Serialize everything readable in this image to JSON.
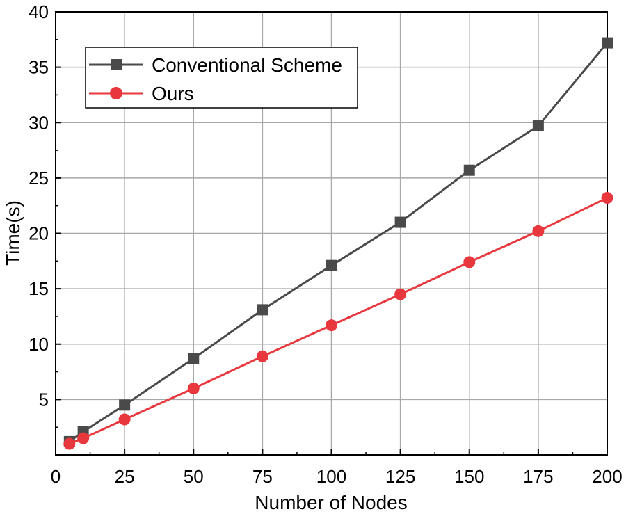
{
  "chart_data": {
    "type": "line",
    "title": "",
    "xlabel": "Number of Nodes",
    "ylabel": "Time(s)",
    "xlim": [
      0,
      200
    ],
    "ylim": [
      0,
      40
    ],
    "x_ticks": [
      "0",
      "25",
      "50",
      "75",
      "100",
      "125",
      "150",
      "175",
      "200"
    ],
    "y_ticks": [
      "5",
      "10",
      "15",
      "20",
      "25",
      "30",
      "35",
      "40"
    ],
    "grid": true,
    "legend_position": "top-left",
    "series": [
      {
        "name": "Conventional Scheme",
        "color": "#4a4a4a",
        "marker": "square",
        "x": [
          5,
          10,
          25,
          50,
          75,
          100,
          125,
          150,
          175,
          200
        ],
        "values": [
          1.2,
          2.1,
          4.5,
          8.7,
          13.1,
          17.1,
          21.0,
          25.7,
          29.7,
          37.2
        ]
      },
      {
        "name": "Ours",
        "color": "#e8373d",
        "marker": "circle",
        "x": [
          5,
          10,
          25,
          50,
          75,
          100,
          125,
          150,
          175,
          200
        ],
        "values": [
          1.0,
          1.5,
          3.2,
          6.0,
          8.9,
          11.7,
          14.5,
          17.4,
          20.2,
          23.2
        ]
      }
    ]
  }
}
